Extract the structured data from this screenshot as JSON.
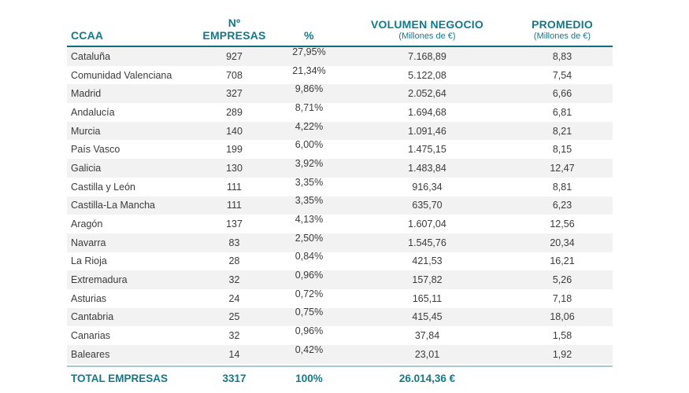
{
  "colors": {
    "teal": "#12798A",
    "header_line": "#0E6B79",
    "alt_row_bg": "#F2F2F2",
    "body_text": "#3B3B3B",
    "total_line": "#A7C8CE"
  },
  "chart_data": {
    "type": "table",
    "title": "",
    "columns": {
      "ccaa": "CCAA",
      "empresas": [
        "Nº",
        "EMPRESAS"
      ],
      "pct": "%",
      "volumen": [
        "VOLUMEN NEGOCIO",
        "(Millones de €)"
      ],
      "promedio": [
        "PROMEDIO",
        "(Millones de €)"
      ]
    },
    "rows": [
      {
        "ccaa": "Cataluña",
        "empresas": "927",
        "pct": "27,95%",
        "volumen": "7.168,89",
        "promedio": "8,83"
      },
      {
        "ccaa": "Comunidad Valenciana",
        "empresas": "708",
        "pct": "21,34%",
        "volumen": "5.122,08",
        "promedio": "7,54"
      },
      {
        "ccaa": "Madrid",
        "empresas": "327",
        "pct": "9,86%",
        "volumen": "2.052,64",
        "promedio": "6,66"
      },
      {
        "ccaa": "Andalucía",
        "empresas": "289",
        "pct": "8,71%",
        "volumen": "1.694,68",
        "promedio": "6,81"
      },
      {
        "ccaa": "Murcia",
        "empresas": "140",
        "pct": "4,22%",
        "volumen": "1.091,46",
        "promedio": "8,21"
      },
      {
        "ccaa": "País Vasco",
        "empresas": "199",
        "pct": "6,00%",
        "volumen": "1.475,15",
        "promedio": "8,15"
      },
      {
        "ccaa": "Galicia",
        "empresas": "130",
        "pct": "3,92%",
        "volumen": "1.483,84",
        "promedio": "12,47"
      },
      {
        "ccaa": "Castilla y León",
        "empresas": "111",
        "pct": "3,35%",
        "volumen": "916,34",
        "promedio": "8,81"
      },
      {
        "ccaa": "Castilla-La Mancha",
        "empresas": "111",
        "pct": "3,35%",
        "volumen": "635,70",
        "promedio": "6,23"
      },
      {
        "ccaa": "Aragón",
        "empresas": "137",
        "pct": "4,13%",
        "volumen": "1.607,04",
        "promedio": "12,56"
      },
      {
        "ccaa": "Navarra",
        "empresas": "83",
        "pct": "2,50%",
        "volumen": "1.545,76",
        "promedio": "20,34"
      },
      {
        "ccaa": "La Rioja",
        "empresas": "28",
        "pct": "0,84%",
        "volumen": "421,53",
        "promedio": "16,21"
      },
      {
        "ccaa": "Extremadura",
        "empresas": "32",
        "pct": "0,96%",
        "volumen": "157,82",
        "promedio": "5,26"
      },
      {
        "ccaa": "Asturias",
        "empresas": "24",
        "pct": "0,72%",
        "volumen": "165,11",
        "promedio": "7,18"
      },
      {
        "ccaa": "Cantabria",
        "empresas": "25",
        "pct": "0,75%",
        "volumen": "415,45",
        "promedio": "18,06"
      },
      {
        "ccaa": "Canarias",
        "empresas": "32",
        "pct": "0,96%",
        "volumen": "37,84",
        "promedio": "1,58"
      },
      {
        "ccaa": "Baleares",
        "empresas": "14",
        "pct": "0,42%",
        "volumen": "23,01",
        "promedio": "1,92"
      }
    ],
    "total": {
      "label": "TOTAL EMPRESAS",
      "empresas": "3317",
      "pct": "100%",
      "volumen": "26.014,36 €",
      "promedio": ""
    }
  }
}
